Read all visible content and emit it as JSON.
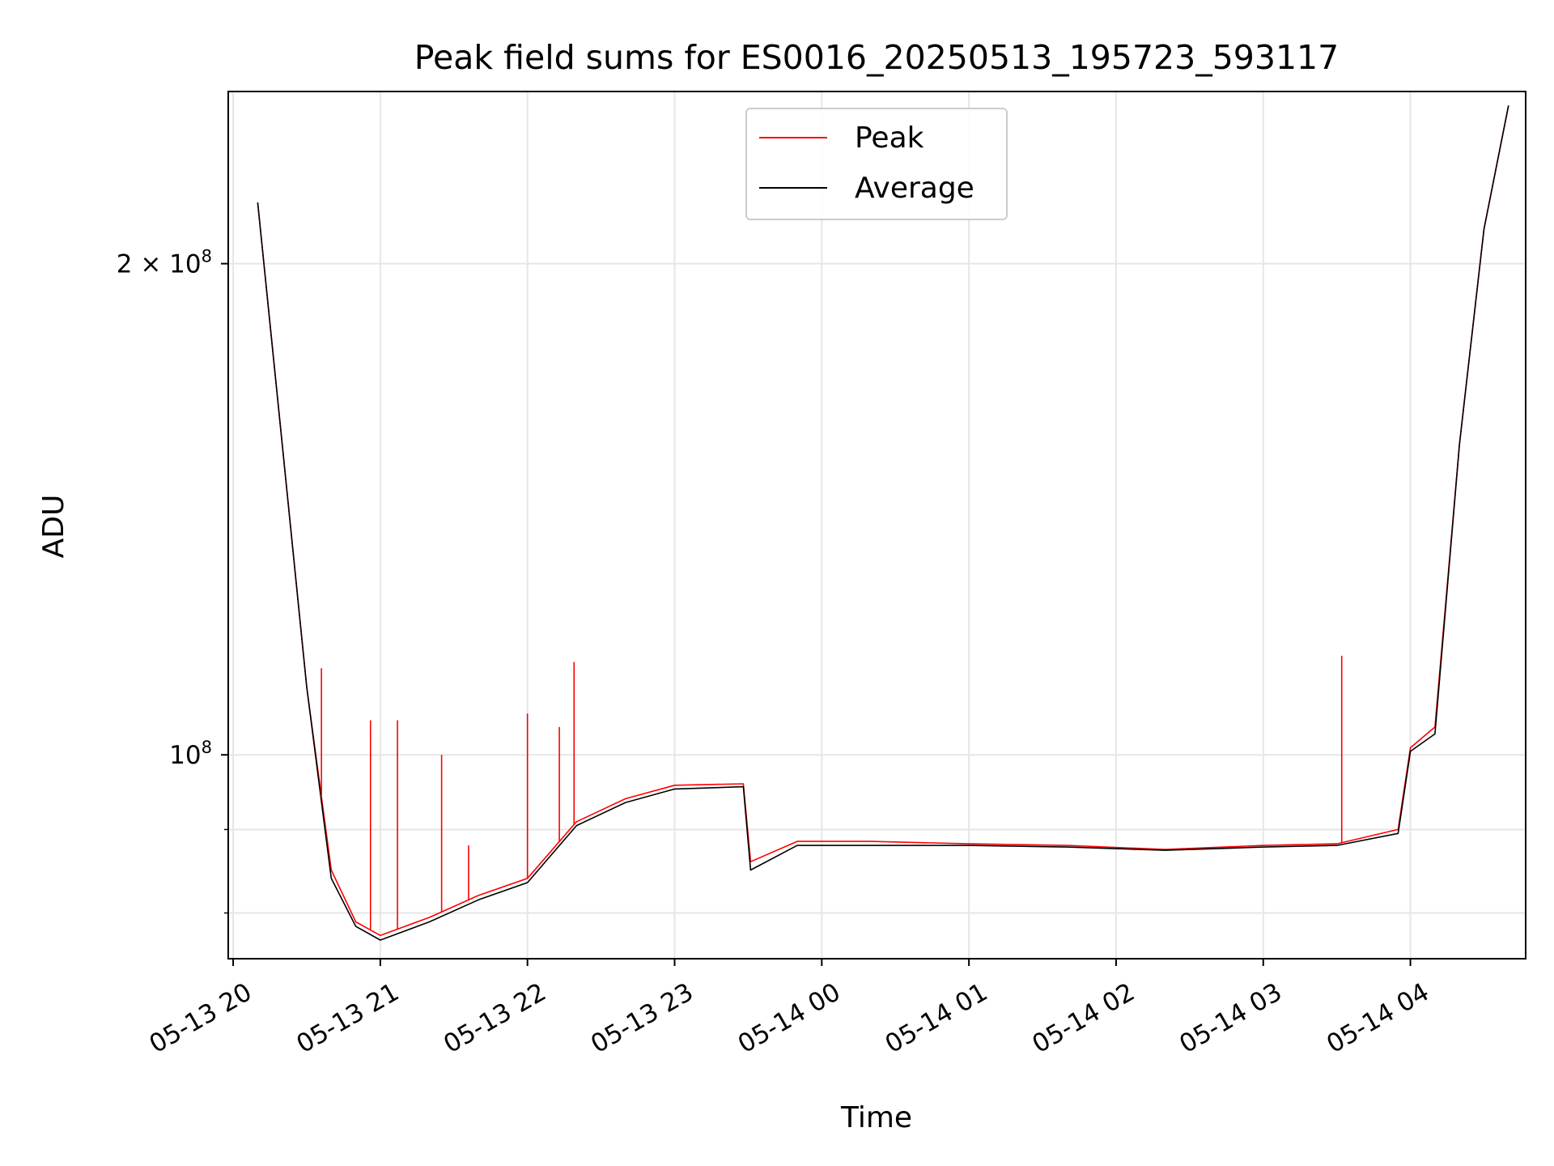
{
  "chart_data": {
    "type": "line",
    "title": "Peak field sums for ES0016_20250513_195723_593117",
    "xlabel": "Time",
    "ylabel": "ADU",
    "y_scale": "log",
    "ylim": [
      75000000,
      255000000
    ],
    "xlim": [
      "2025-05-13 19:58",
      "2025-05-14 04:47"
    ],
    "x_ticks": [
      "05-13 20",
      "05-13 21",
      "05-13 22",
      "05-13 23",
      "05-14 00",
      "05-14 01",
      "05-14 02",
      "05-14 03",
      "05-14 04"
    ],
    "y_ticks": [
      {
        "value": 100000000,
        "label": "10",
        "exp": "8"
      },
      {
        "value": 200000000,
        "label": "2 × 10",
        "exp": "8"
      }
    ],
    "grid": true,
    "legend_position": "top-center",
    "series": [
      {
        "name": "Peak",
        "color": "#ff0000",
        "x": [
          "2025-05-13 20:10",
          "2025-05-13 20:20",
          "2025-05-13 20:30",
          "2025-05-13 20:40",
          "2025-05-13 20:50",
          "2025-05-13 21:00",
          "2025-05-13 21:20",
          "2025-05-13 21:40",
          "2025-05-13 22:00",
          "2025-05-13 22:20",
          "2025-05-13 22:40",
          "2025-05-13 23:00",
          "2025-05-13 23:28",
          "2025-05-13 23:31",
          "2025-05-13 23:50",
          "2025-05-14 00:20",
          "2025-05-14 01:00",
          "2025-05-14 01:40",
          "2025-05-14 02:20",
          "2025-05-14 03:00",
          "2025-05-14 03:30",
          "2025-05-14 03:55",
          "2025-05-14 04:00",
          "2025-05-14 04:10",
          "2025-05-14 04:20",
          "2025-05-14 04:30",
          "2025-05-14 04:40"
        ],
        "y": [
          218000000,
          155000000,
          110000000,
          85000000,
          79000000,
          77500000,
          79500000,
          82000000,
          84000000,
          91000000,
          94000000,
          95800000,
          96000000,
          86000000,
          88500000,
          88500000,
          88200000,
          88000000,
          87500000,
          88000000,
          88200000,
          90000000,
          101000000,
          104000000,
          155000000,
          210000000,
          250000000
        ]
      },
      {
        "name": "Average",
        "color": "#000000",
        "x": [
          "2025-05-13 20:10",
          "2025-05-13 20:20",
          "2025-05-13 20:30",
          "2025-05-13 20:40",
          "2025-05-13 20:50",
          "2025-05-13 21:00",
          "2025-05-13 21:20",
          "2025-05-13 21:40",
          "2025-05-13 22:00",
          "2025-05-13 22:20",
          "2025-05-13 22:40",
          "2025-05-13 23:00",
          "2025-05-13 23:28",
          "2025-05-13 23:31",
          "2025-05-13 23:50",
          "2025-05-14 00:20",
          "2025-05-14 01:00",
          "2025-05-14 01:40",
          "2025-05-14 02:20",
          "2025-05-14 03:00",
          "2025-05-14 03:30",
          "2025-05-14 03:55",
          "2025-05-14 04:00",
          "2025-05-14 04:10",
          "2025-05-14 04:20",
          "2025-05-14 04:30",
          "2025-05-14 04:40"
        ],
        "y": [
          218000000,
          155000000,
          110000000,
          84000000,
          78500000,
          77000000,
          79000000,
          81500000,
          83500000,
          90500000,
          93500000,
          95300000,
          95600000,
          85000000,
          88000000,
          88000000,
          88000000,
          87800000,
          87400000,
          87800000,
          88000000,
          89500000,
          100500000,
          103000000,
          155000000,
          210000000,
          250000000
        ]
      }
    ],
    "peak_spikes": [
      {
        "x": "2025-05-13 20:36",
        "y": 113000000
      },
      {
        "x": "2025-05-13 20:56",
        "y": 105000000
      },
      {
        "x": "2025-05-13 21:07",
        "y": 105000000
      },
      {
        "x": "2025-05-13 21:25",
        "y": 100000000
      },
      {
        "x": "2025-05-13 21:36",
        "y": 88000000
      },
      {
        "x": "2025-05-13 22:00",
        "y": 106000000
      },
      {
        "x": "2025-05-13 22:13",
        "y": 104000000
      },
      {
        "x": "2025-05-13 22:19",
        "y": 114000000
      },
      {
        "x": "2025-05-14 03:32",
        "y": 115000000
      }
    ]
  }
}
